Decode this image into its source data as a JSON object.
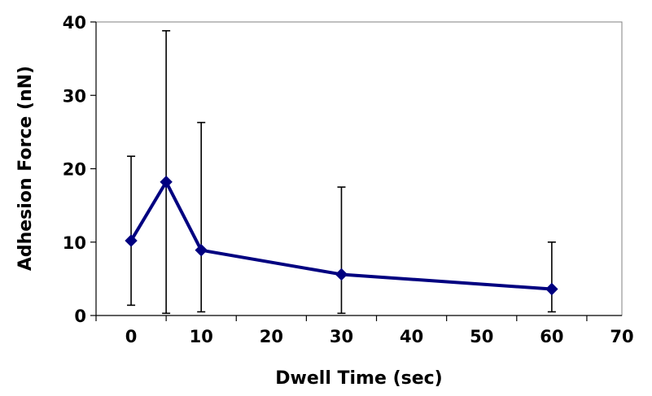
{
  "chart_data": {
    "type": "line",
    "title": "",
    "xlabel": "Dwell Time (sec)",
    "ylabel": "Adhesion Force (nN)",
    "xlim": [
      -5,
      70
    ],
    "ylim": [
      0,
      40
    ],
    "xticks": [
      "0",
      "10",
      "20",
      "30",
      "40",
      "50",
      "60",
      "70"
    ],
    "yticks": [
      "0",
      "10",
      "20",
      "30",
      "40"
    ],
    "grid": false,
    "legend": "none",
    "series": [
      {
        "name": "Adhesion Force",
        "color": "#000080",
        "marker": "diamond",
        "x": [
          0,
          5,
          10,
          30,
          60
        ],
        "y": [
          10.2,
          18.2,
          8.9,
          5.6,
          3.6
        ],
        "error_low": [
          1.4,
          0.3,
          0.5,
          0.3,
          0.5
        ],
        "error_high": [
          21.7,
          38.8,
          26.3,
          17.5,
          10.0
        ]
      }
    ]
  }
}
